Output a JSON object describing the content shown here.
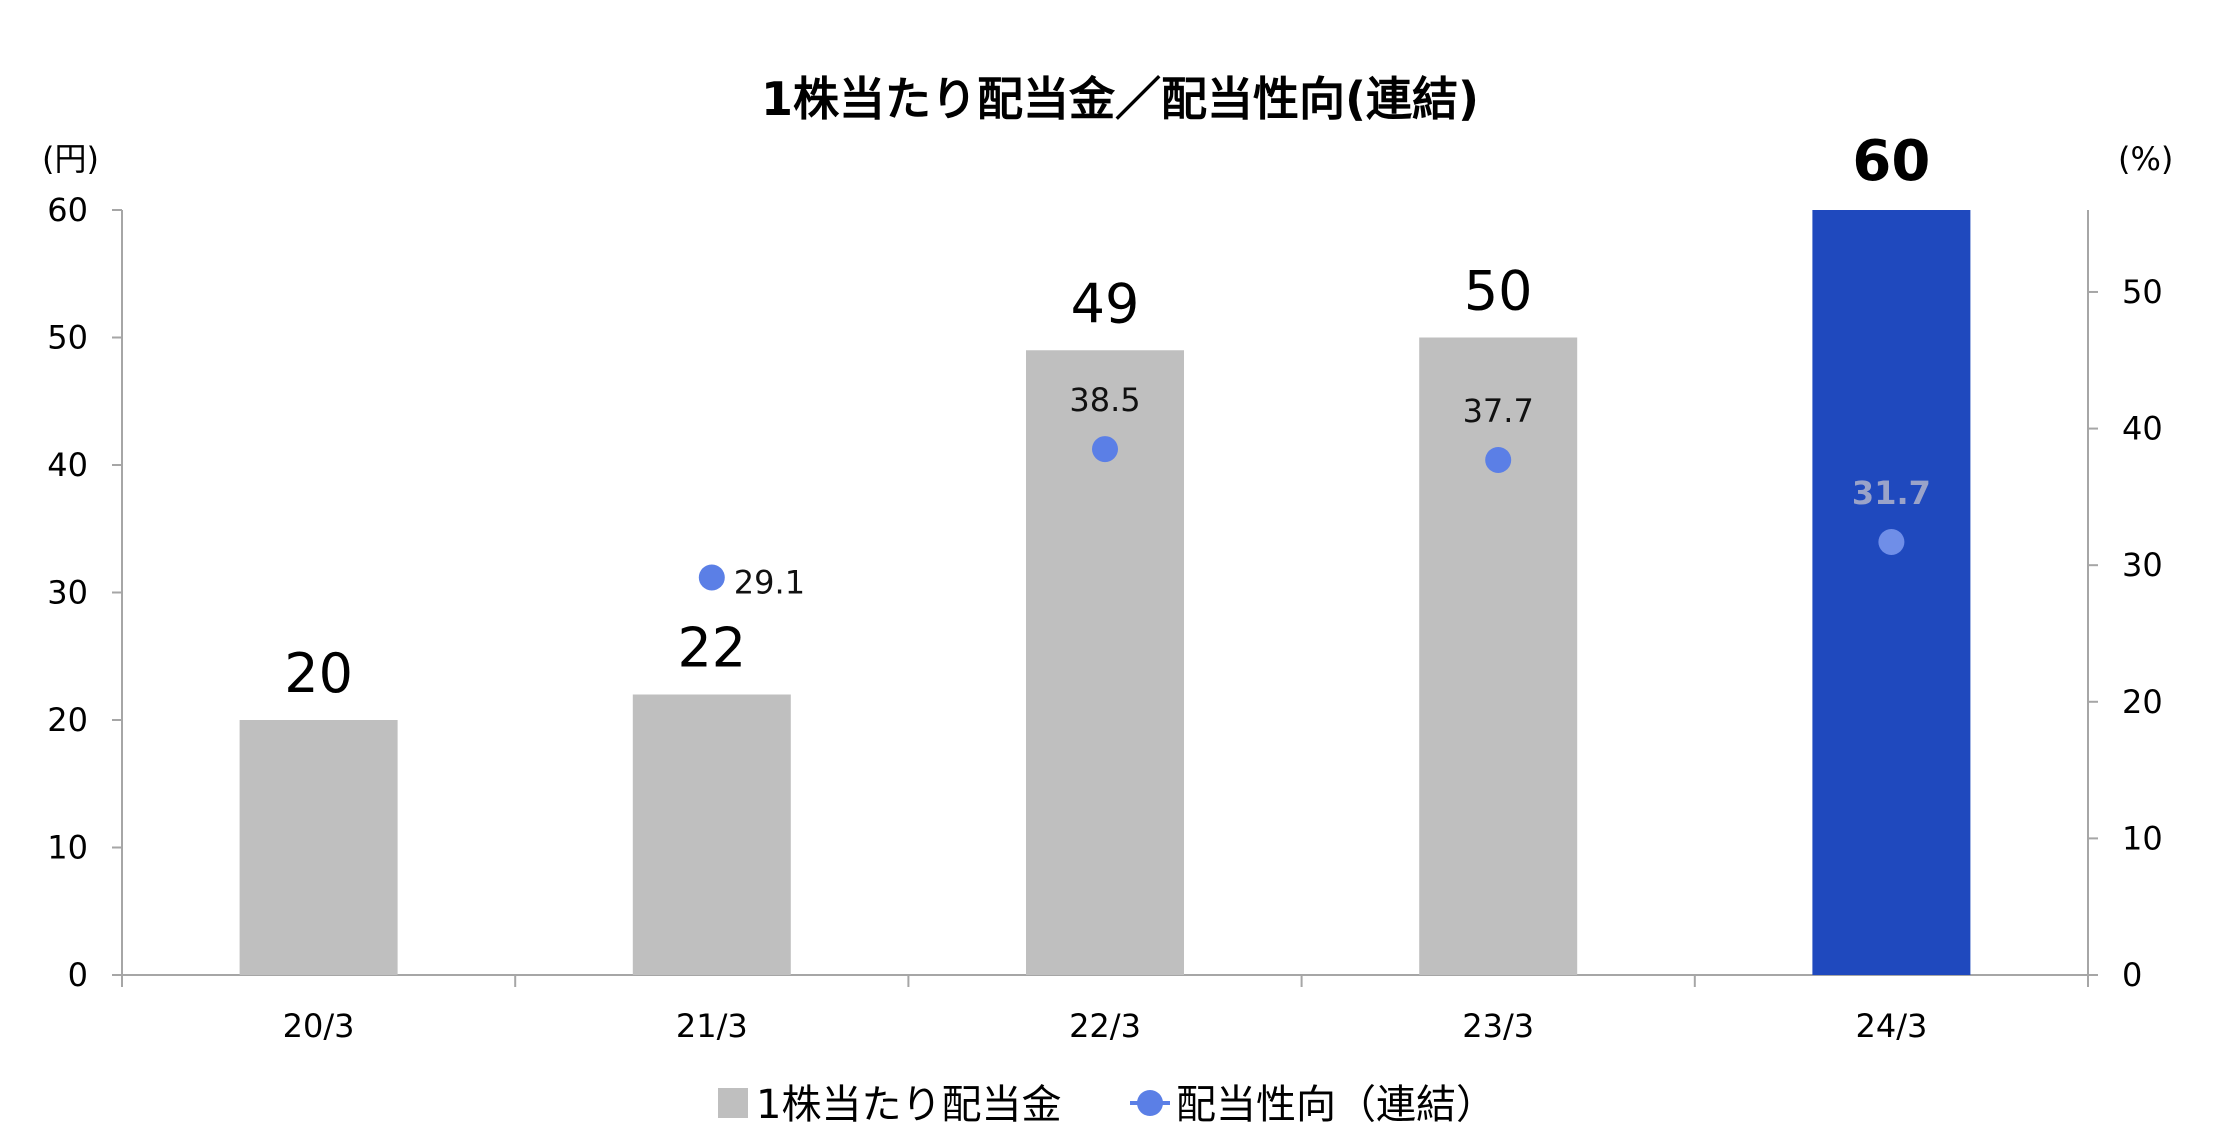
{
  "chart_data": {
    "type": "bar",
    "title": "1株当たり配当金／配当性向(連結)",
    "left_unit": "(円)",
    "right_unit": "(%)",
    "categories": [
      "20/3",
      "21/3",
      "22/3",
      "23/3",
      "24/3"
    ],
    "ylim_left": [
      0,
      60
    ],
    "ylim_right": [
      0,
      56
    ],
    "yticks_left": [
      "0",
      "10",
      "20",
      "30",
      "40",
      "50",
      "60"
    ],
    "yticks_right": [
      "0",
      "10",
      "20",
      "30",
      "40",
      "50"
    ],
    "series": [
      {
        "name": "1株当たり配当金",
        "kind": "bar",
        "axis": "left",
        "values": [
          20,
          22,
          49,
          50,
          60
        ],
        "labels": [
          "20",
          "22",
          "49",
          "50",
          "60"
        ],
        "color": "#bfbfbf",
        "highlight_index": 4,
        "highlight_color": "#1f49be"
      },
      {
        "name": "配当性向（連結）",
        "kind": "point",
        "axis": "right",
        "values": [
          null,
          29.1,
          38.5,
          37.7,
          31.7
        ],
        "labels": [
          "",
          "29.1",
          "38.5",
          "37.7",
          "31.7"
        ],
        "color": "#5b7fe6",
        "highlight_color": "#6f8ee8"
      }
    ],
    "legend": {
      "position": "bottom"
    }
  }
}
